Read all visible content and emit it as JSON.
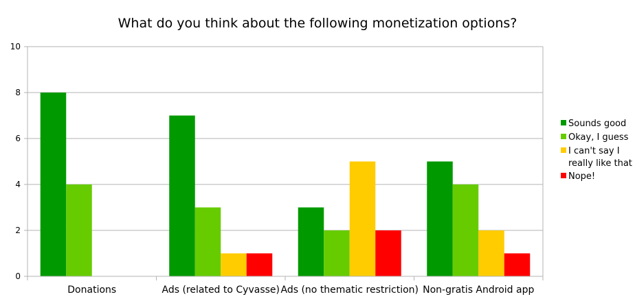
{
  "chart_data": {
    "type": "bar",
    "title": "What do you think about the following monetization options?",
    "xlabel": "",
    "ylabel": "",
    "ylim": [
      0,
      10
    ],
    "yticks": [
      "0",
      "2",
      "4",
      "6",
      "8",
      "10"
    ],
    "grid": true,
    "legend_position": "right",
    "categories": [
      "Donations",
      "Ads (related to Cyvasse)",
      "Ads (no thematic restriction)",
      "Non-gratis Android app"
    ],
    "series": [
      {
        "name": "Sounds good",
        "legend_lines": [
          "Sounds good"
        ],
        "color": "#009900",
        "values": [
          8,
          7,
          3,
          5
        ]
      },
      {
        "name": "Okay, I guess",
        "legend_lines": [
          "Okay, I guess"
        ],
        "color": "#66cc00",
        "values": [
          4,
          3,
          2,
          4
        ]
      },
      {
        "name": "I can't say I really like that",
        "legend_lines": [
          "I can't say I",
          "really like that"
        ],
        "color": "#ffcc00",
        "values": [
          0,
          1,
          5,
          2
        ]
      },
      {
        "name": "Nope!",
        "legend_lines": [
          "Nope!"
        ],
        "color": "#ff0000",
        "values": [
          0,
          1,
          2,
          1
        ]
      }
    ]
  }
}
